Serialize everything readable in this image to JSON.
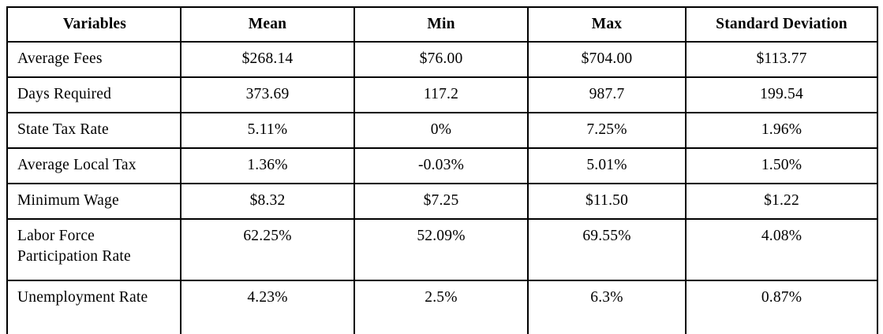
{
  "table": {
    "title": "summary-statistics-table",
    "columns": [
      "Variables",
      "Mean",
      "Min",
      "Max",
      "Standard Deviation"
    ],
    "rows": [
      [
        "Average Fees",
        "$268.14",
        "$76.00",
        "$704.00",
        "$113.77"
      ],
      [
        "Days Required",
        "373.69",
        "117.2",
        "987.7",
        "199.54"
      ],
      [
        "State Tax Rate",
        "5.11%",
        "0%",
        "7.25%",
        "1.96%"
      ],
      [
        "Average Local Tax",
        "1.36%",
        "-0.03%",
        "5.01%",
        "1.50%"
      ],
      [
        "Minimum Wage",
        "$8.32",
        "$7.25",
        "$11.50",
        "$1.22"
      ],
      [
        "Labor Force Participation Rate",
        "62.25%",
        "52.09%",
        "69.55%",
        "4.08%"
      ],
      [
        "Unemployment Rate",
        "4.23%",
        "2.5%",
        "6.3%",
        "0.87%"
      ]
    ],
    "colors": {
      "border": "#000000",
      "background": "#ffffff",
      "text": "#000000"
    }
  }
}
